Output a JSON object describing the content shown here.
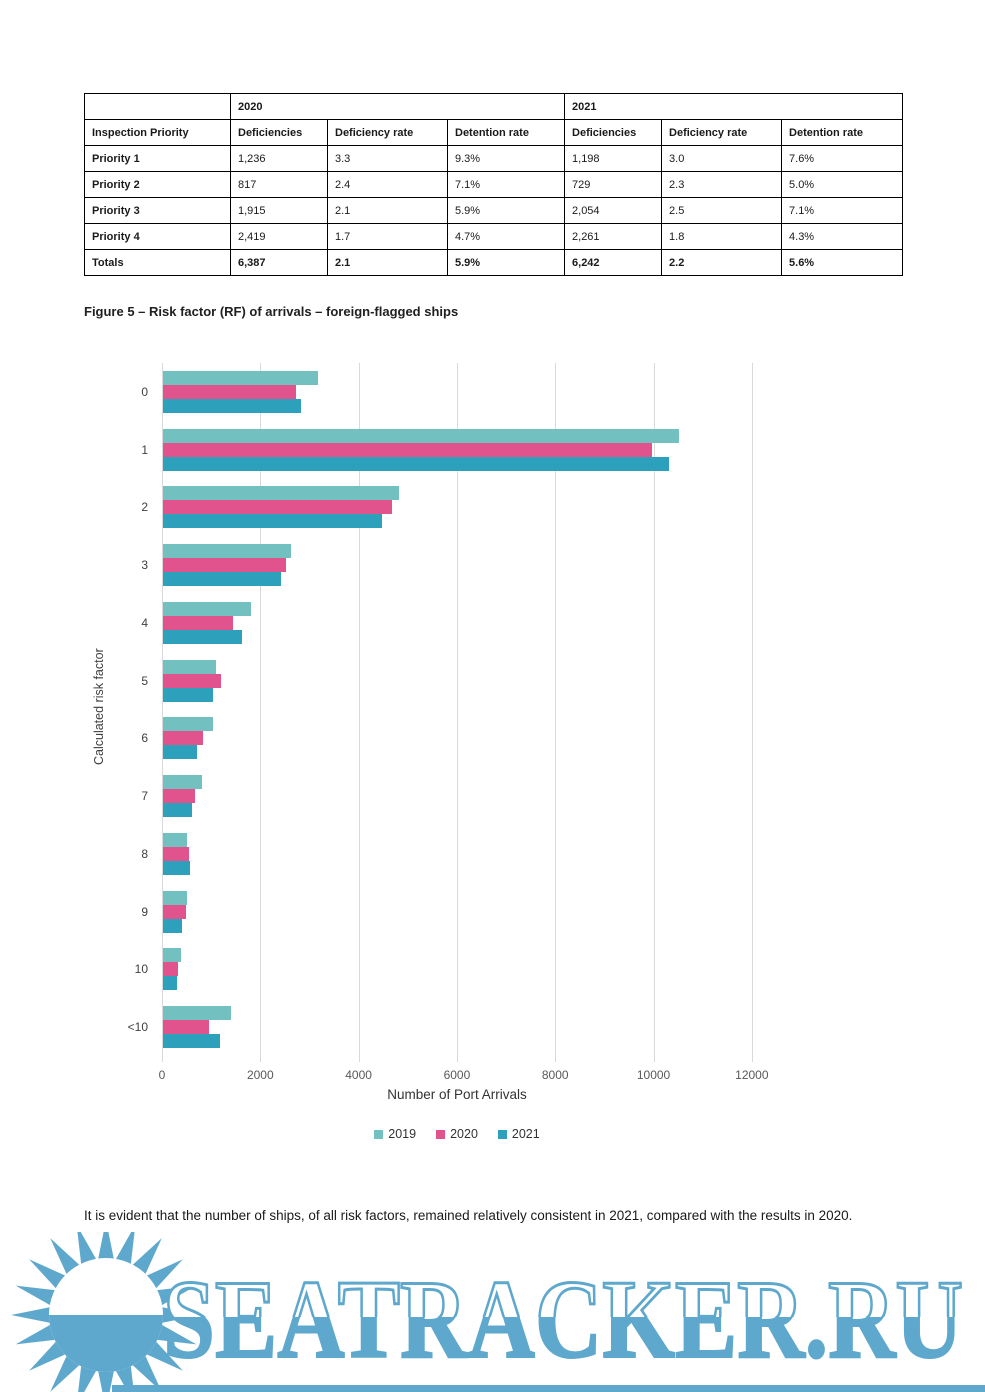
{
  "table": {
    "year_header": {
      "blank": "",
      "col1": "2020",
      "col2": "2021"
    },
    "columns": [
      "Inspection Priority",
      "Deficiencies",
      "Deficiency rate",
      "Detention rate",
      "Deficiencies",
      "Deficiency rate",
      "Detention rate"
    ],
    "rows": [
      {
        "label": "Priority 1",
        "values": [
          "1,236",
          "3.3",
          "9.3%",
          "1,198",
          "3.0",
          "7.6%"
        ],
        "bold": false
      },
      {
        "label": "Priority 2",
        "values": [
          "817",
          "2.4",
          "7.1%",
          "729",
          "2.3",
          "5.0%"
        ],
        "bold": false
      },
      {
        "label": "Priority 3",
        "values": [
          "1,915",
          "2.1",
          "5.9%",
          "2,054",
          "2.5",
          "7.1%"
        ],
        "bold": false
      },
      {
        "label": "Priority 4",
        "values": [
          "2,419",
          "1.7",
          "4.7%",
          "2,261",
          "1.8",
          "4.3%"
        ],
        "bold": false
      },
      {
        "label": "Totals",
        "values": [
          "6,387",
          "2.1",
          "5.9%",
          "6,242",
          "2.2",
          "5.6%"
        ],
        "bold": true
      }
    ]
  },
  "figure": {
    "caption": "Figure 5 – Risk factor (RF) of arrivals – foreign-flagged ships"
  },
  "chart_data": {
    "type": "bar",
    "orientation": "horizontal",
    "title": "Figure 5 – Risk factor (RF) of arrivals – foreign-flagged ships",
    "categories": [
      "0",
      "1",
      "2",
      "3",
      "4",
      "5",
      "6",
      "7",
      "8",
      "9",
      "10",
      "<10"
    ],
    "series": [
      {
        "name": "2019",
        "color": "#72c0c0",
        "values": [
          3150,
          10500,
          4800,
          2600,
          1800,
          1080,
          1010,
          800,
          480,
          480,
          360,
          1380
        ]
      },
      {
        "name": "2020",
        "color": "#e0538c",
        "values": [
          2700,
          9950,
          4650,
          2500,
          1430,
          1170,
          820,
          650,
          530,
          460,
          310,
          940
        ]
      },
      {
        "name": "2021",
        "color": "#2da0bc",
        "values": [
          2800,
          10300,
          4450,
          2400,
          1600,
          1020,
          700,
          600,
          550,
          390,
          290,
          1160
        ]
      }
    ],
    "xlabel": "Number of Port Arrivals",
    "ylabel": "Calculated risk factor",
    "xlim": [
      0,
      14200
    ],
    "xticks": [
      0,
      2000,
      4000,
      6000,
      8000,
      10000,
      12000
    ],
    "grid": "vertical",
    "legend_position": "bottom",
    "gridline_color": "#d9d9d9"
  },
  "body": {
    "paragraph": "It is evident that the number of ships, of all risk factors, remained relatively consistent in 2021, compared with the results in 2020."
  },
  "watermark": {
    "text": "SEATRACKER.RU",
    "color": "#5fa8cd",
    "icon": "sun-icon"
  }
}
